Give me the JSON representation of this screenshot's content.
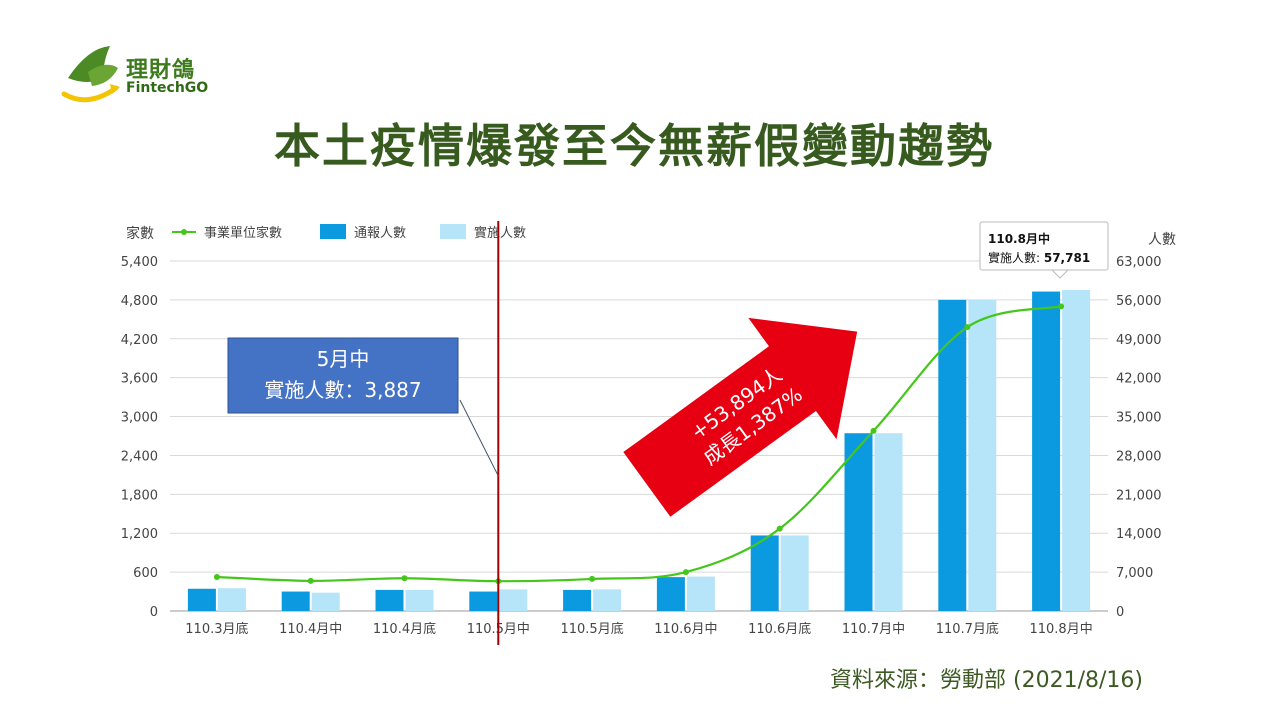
{
  "logo": {
    "name": "理財鴿",
    "subtitle": "FintechGO"
  },
  "title": "本土疫情爆發至今無薪假變動趨勢",
  "source": "資料來源：勞動部 (2021/8/16)",
  "colors": {
    "reported": "#0b9ae0",
    "implemented": "#b6e4f8",
    "companies": "#44c71a",
    "title": "#375a1f",
    "arrow": "#e60012",
    "callout_box": "#4472c4",
    "marker_line": "#a10000"
  },
  "chart_data": {
    "type": "bar",
    "categories": [
      "110.3月底",
      "110.4月中",
      "110.4月底",
      "110.5月中",
      "110.5月底",
      "110.6月中",
      "110.6月底",
      "110.7月中",
      "110.7月底",
      "110.8月中"
    ],
    "series": [
      {
        "name": "事業單位家數",
        "kind": "line",
        "axis": "left",
        "values": [
          525,
          465,
          505,
          460,
          495,
          600,
          1270,
          2780,
          4380,
          4700
        ]
      },
      {
        "name": "通報人數",
        "kind": "bar",
        "axis": "right",
        "values": [
          4000,
          3500,
          3800,
          3500,
          3800,
          6100,
          13600,
          32000,
          56000,
          57500
        ]
      },
      {
        "name": "實施人數",
        "kind": "bar",
        "axis": "right",
        "values": [
          4100,
          3300,
          3800,
          3887,
          3900,
          6200,
          13600,
          32000,
          56000,
          57781
        ]
      }
    ],
    "ylabel_left": "家數",
    "ylabel_right": "人數",
    "ylim_left": [
      0,
      5400
    ],
    "yticks_left": [
      "0",
      "600",
      "1,200",
      "1,800",
      "2,400",
      "3,000",
      "3,600",
      "4,200",
      "4,800",
      "5,400"
    ],
    "ylim_right": [
      0,
      63000
    ],
    "yticks_right": [
      "0",
      "7,000",
      "14,000",
      "21,000",
      "28,000",
      "35,000",
      "42,000",
      "49,000",
      "56,000",
      "63,000"
    ],
    "grid": true,
    "legend_position": "top-left",
    "marker_category": "110.5月中",
    "callout": {
      "line1": "5月中",
      "line2": "實施人數：3,887"
    },
    "growth": {
      "line1": "+53,894人",
      "line2": "成長1,387%"
    },
    "tooltip": {
      "title": "110.8月中",
      "label": "實施人數: ",
      "value": "57,781"
    }
  }
}
